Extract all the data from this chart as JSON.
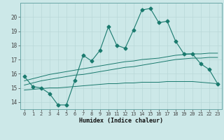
{
  "xlabel": "Humidex (Indice chaleur)",
  "x": [
    0,
    1,
    2,
    3,
    4,
    5,
    6,
    7,
    8,
    9,
    10,
    11,
    12,
    13,
    14,
    15,
    16,
    17,
    18,
    19,
    20,
    21,
    22,
    23
  ],
  "y_main": [
    15.8,
    15.1,
    15.0,
    14.6,
    13.8,
    13.8,
    15.5,
    17.3,
    16.9,
    17.65,
    19.3,
    18.0,
    17.8,
    19.1,
    20.5,
    20.6,
    19.6,
    19.7,
    18.3,
    17.4,
    17.4,
    16.7,
    16.3,
    15.3
  ],
  "y_upper": [
    15.5,
    15.65,
    15.8,
    15.95,
    16.05,
    16.15,
    16.25,
    16.35,
    16.45,
    16.55,
    16.65,
    16.75,
    16.85,
    16.9,
    17.0,
    17.05,
    17.1,
    17.2,
    17.3,
    17.35,
    17.4,
    17.4,
    17.45,
    17.45
  ],
  "y_upper2": [
    15.2,
    15.35,
    15.5,
    15.6,
    15.7,
    15.8,
    15.9,
    15.95,
    16.05,
    16.15,
    16.25,
    16.35,
    16.45,
    16.5,
    16.6,
    16.7,
    16.8,
    16.9,
    17.0,
    17.05,
    17.1,
    17.1,
    17.15,
    17.15
  ],
  "y_lower": [
    14.85,
    14.9,
    14.95,
    15.0,
    15.0,
    15.05,
    15.1,
    15.15,
    15.2,
    15.25,
    15.3,
    15.3,
    15.35,
    15.35,
    15.4,
    15.4,
    15.4,
    15.45,
    15.45,
    15.45,
    15.45,
    15.4,
    15.35,
    15.3
  ],
  "color": "#1a7a6e",
  "bg_color": "#cce8e8",
  "grid_color": "#b8d8d8",
  "ylim": [
    13.5,
    21.0
  ],
  "yticks": [
    14,
    15,
    16,
    17,
    18,
    19,
    20
  ],
  "xlim": [
    -0.5,
    23.5
  ],
  "markersize": 2.5
}
